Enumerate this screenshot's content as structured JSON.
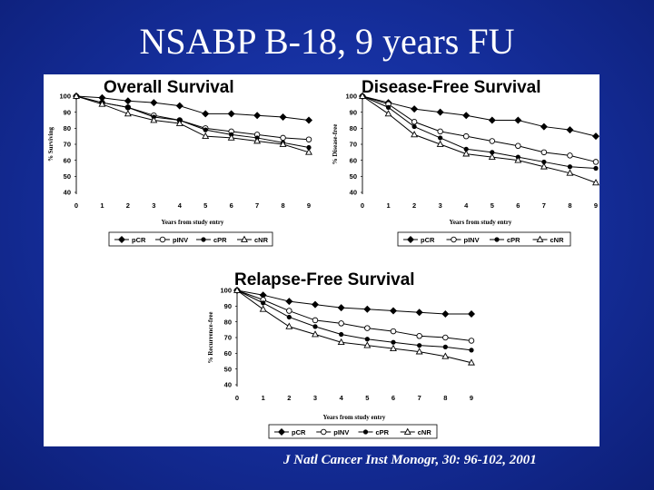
{
  "slide": {
    "title": "NSABP B-18, 9 years FU",
    "citation": "J Natl Cancer Inst Monogr, 30: 96-102, 2001"
  },
  "chart_data": [
    {
      "type": "line",
      "title": "Overall Survival",
      "xlabel": "Years from study entry",
      "ylabel": "% Surviving",
      "x": [
        0,
        1,
        2,
        3,
        4,
        5,
        6,
        7,
        8,
        9
      ],
      "xlim": [
        0,
        9
      ],
      "ylim": [
        40,
        100
      ],
      "yticks": [
        40,
        50,
        60,
        70,
        80,
        90,
        100
      ],
      "legend_position": "bottom",
      "series": [
        {
          "name": "pCR",
          "marker": "diamond-filled",
          "values": [
            100,
            99,
            97,
            96,
            94,
            89,
            89,
            88,
            87,
            85
          ]
        },
        {
          "name": "pINV",
          "marker": "circle-open",
          "values": [
            100,
            96,
            93,
            88,
            85,
            80,
            78,
            76,
            74,
            73
          ]
        },
        {
          "name": "cPR",
          "marker": "circle-filled",
          "values": [
            100,
            96,
            93,
            87,
            85,
            79,
            76,
            74,
            71,
            68
          ]
        },
        {
          "name": "cNR",
          "marker": "triangle-open",
          "values": [
            100,
            95,
            89,
            85,
            83,
            75,
            74,
            72,
            70,
            65
          ]
        }
      ]
    },
    {
      "type": "line",
      "title": "Disease-Free Survival",
      "xlabel": "Years from study entry",
      "ylabel": "% Disease-free",
      "x": [
        0,
        1,
        2,
        3,
        4,
        5,
        6,
        7,
        8,
        9
      ],
      "xlim": [
        0,
        9
      ],
      "ylim": [
        40,
        100
      ],
      "yticks": [
        40,
        50,
        60,
        70,
        80,
        90,
        100
      ],
      "legend_position": "bottom",
      "series": [
        {
          "name": "pCR",
          "marker": "diamond-filled",
          "values": [
            100,
            96,
            92,
            90,
            88,
            85,
            85,
            81,
            79,
            75
          ]
        },
        {
          "name": "pINV",
          "marker": "circle-open",
          "values": [
            100,
            95,
            84,
            78,
            75,
            72,
            69,
            65,
            63,
            59
          ]
        },
        {
          "name": "cPR",
          "marker": "circle-filled",
          "values": [
            100,
            93,
            81,
            74,
            67,
            65,
            62,
            59,
            56,
            55
          ]
        },
        {
          "name": "cNR",
          "marker": "triangle-open",
          "values": [
            100,
            89,
            76,
            70,
            64,
            62,
            60,
            56,
            52,
            46
          ]
        }
      ]
    },
    {
      "type": "line",
      "title": "Relapse-Free Survival",
      "xlabel": "Years from study entry",
      "ylabel": "% Recurrence-free",
      "x": [
        0,
        1,
        2,
        3,
        4,
        5,
        6,
        7,
        8,
        9
      ],
      "xlim": [
        0,
        9
      ],
      "ylim": [
        40,
        100
      ],
      "yticks": [
        40,
        50,
        60,
        70,
        80,
        90,
        100
      ],
      "legend_position": "bottom",
      "series": [
        {
          "name": "pCR",
          "marker": "diamond-filled",
          "values": [
            100,
            97,
            93,
            91,
            89,
            88,
            87,
            86,
            85,
            85
          ]
        },
        {
          "name": "pINV",
          "marker": "circle-open",
          "values": [
            100,
            94,
            87,
            81,
            79,
            76,
            74,
            71,
            70,
            68
          ]
        },
        {
          "name": "cPR",
          "marker": "circle-filled",
          "values": [
            100,
            92,
            83,
            77,
            72,
            69,
            67,
            65,
            64,
            62
          ]
        },
        {
          "name": "cNR",
          "marker": "triangle-open",
          "values": [
            100,
            88,
            77,
            72,
            67,
            65,
            63,
            61,
            58,
            54
          ]
        }
      ]
    }
  ]
}
